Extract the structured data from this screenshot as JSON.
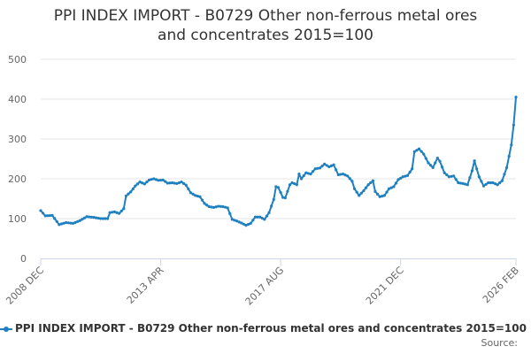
{
  "title_line1": "PPI INDEX IMPORT - B0729 Other non-ferrous metal ores",
  "title_line2": "and concentrates 2015=100",
  "legend": {
    "label": "PPI INDEX IMPORT - B0729 Other non-ferrous metal ores and concentrates 2015=100"
  },
  "source": {
    "label": "Source:",
    "value": ""
  },
  "colors": {
    "series": "#1f80c0",
    "grid": "#e6e6e6",
    "axis": "#ccd6eb",
    "text": "#666666"
  },
  "chart_data": {
    "type": "line",
    "x_axis_labels": [
      "2008 DEC",
      "2013 APR",
      "2017 AUG",
      "2021 DEC",
      "2026 FEB"
    ],
    "y_ticks": [
      "0",
      "100",
      "200",
      "300",
      "400",
      "500"
    ],
    "ylim": [
      0,
      500
    ],
    "x_start": "2008-12",
    "x_end": "2026-02",
    "grid": true,
    "legend_position": "bottom",
    "series": [
      {
        "name": "PPI INDEX IMPORT - B0729 Other non-ferrous metal ores and concentrates 2015=100",
        "points": [
          [
            "2008-12",
            120
          ],
          [
            "2009-02",
            107
          ],
          [
            "2009-05",
            108
          ],
          [
            "2009-08",
            85
          ],
          [
            "2009-11",
            90
          ],
          [
            "2010-02",
            88
          ],
          [
            "2010-05",
            95
          ],
          [
            "2010-08",
            105
          ],
          [
            "2010-11",
            103
          ],
          [
            "2011-02",
            100
          ],
          [
            "2011-05",
            100
          ],
          [
            "2011-06",
            115
          ],
          [
            "2011-08",
            117
          ],
          [
            "2011-10",
            113
          ],
          [
            "2011-12",
            125
          ],
          [
            "2012-01",
            157
          ],
          [
            "2012-03",
            167
          ],
          [
            "2012-05",
            182
          ],
          [
            "2012-07",
            192
          ],
          [
            "2012-09",
            187
          ],
          [
            "2012-11",
            197
          ],
          [
            "2013-01",
            200
          ],
          [
            "2013-03",
            196
          ],
          [
            "2013-05",
            197
          ],
          [
            "2013-07",
            189
          ],
          [
            "2013-09",
            190
          ],
          [
            "2013-11",
            188
          ],
          [
            "2014-01",
            192
          ],
          [
            "2014-03",
            184
          ],
          [
            "2014-05",
            165
          ],
          [
            "2014-07",
            158
          ],
          [
            "2014-09",
            155
          ],
          [
            "2014-11",
            138
          ],
          [
            "2015-01",
            130
          ],
          [
            "2015-03",
            128
          ],
          [
            "2015-05",
            131
          ],
          [
            "2015-07",
            130
          ],
          [
            "2015-09",
            127
          ],
          [
            "2015-11",
            98
          ],
          [
            "2016-01",
            94
          ],
          [
            "2016-03",
            89
          ],
          [
            "2016-05",
            83
          ],
          [
            "2016-07",
            88
          ],
          [
            "2016-09",
            104
          ],
          [
            "2016-11",
            104
          ],
          [
            "2017-01",
            98
          ],
          [
            "2017-03",
            115
          ],
          [
            "2017-05",
            148
          ],
          [
            "2017-06",
            180
          ],
          [
            "2017-07",
            178
          ],
          [
            "2017-09",
            153
          ],
          [
            "2017-10",
            152
          ],
          [
            "2017-12",
            185
          ],
          [
            "2018-01",
            190
          ],
          [
            "2018-03",
            185
          ],
          [
            "2018-04",
            212
          ],
          [
            "2018-05",
            200
          ],
          [
            "2018-07",
            215
          ],
          [
            "2018-09",
            212
          ],
          [
            "2018-11",
            225
          ],
          [
            "2019-01",
            227
          ],
          [
            "2019-03",
            237
          ],
          [
            "2019-05",
            230
          ],
          [
            "2019-07",
            235
          ],
          [
            "2019-09",
            210
          ],
          [
            "2019-11",
            212
          ],
          [
            "2020-01",
            207
          ],
          [
            "2020-03",
            194
          ],
          [
            "2020-04",
            175
          ],
          [
            "2020-06",
            158
          ],
          [
            "2020-08",
            170
          ],
          [
            "2020-10",
            185
          ],
          [
            "2020-12",
            195
          ],
          [
            "2021-01",
            168
          ],
          [
            "2021-03",
            155
          ],
          [
            "2021-05",
            158
          ],
          [
            "2021-07",
            175
          ],
          [
            "2021-09",
            180
          ],
          [
            "2021-11",
            198
          ],
          [
            "2022-01",
            205
          ],
          [
            "2022-03",
            208
          ],
          [
            "2022-05",
            225
          ],
          [
            "2022-06",
            268
          ],
          [
            "2022-08",
            275
          ],
          [
            "2022-10",
            262
          ],
          [
            "2022-12",
            240
          ],
          [
            "2023-02",
            228
          ],
          [
            "2023-04",
            252
          ],
          [
            "2023-05",
            244
          ],
          [
            "2023-07",
            215
          ],
          [
            "2023-09",
            205
          ],
          [
            "2023-11",
            207
          ],
          [
            "2024-01",
            190
          ],
          [
            "2024-03",
            188
          ],
          [
            "2024-05",
            185
          ],
          [
            "2024-07",
            220
          ],
          [
            "2024-08",
            245
          ],
          [
            "2024-10",
            205
          ],
          [
            "2024-12",
            182
          ],
          [
            "2025-02",
            190
          ],
          [
            "2025-04",
            190
          ],
          [
            "2025-06",
            185
          ],
          [
            "2025-08",
            195
          ],
          [
            "2025-10",
            228
          ],
          [
            "2025-12",
            285
          ],
          [
            "2026-01",
            335
          ],
          [
            "2026-02",
            405
          ]
        ]
      }
    ]
  }
}
